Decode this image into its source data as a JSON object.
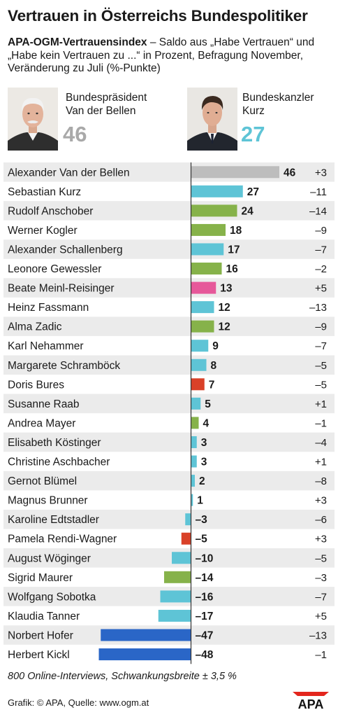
{
  "title": "Vertrauen in Österreichs Bundespolitiker",
  "subtitle": {
    "bold": "APA-OGM-Vertrauensindex",
    "rest": " – Saldo aus „Habe Vertrauen“ und „Habe kein Vertrauen zu ...“ in Prozent, Befragung November, Veränderung zu Juli (%-Punkte)"
  },
  "highlights": [
    {
      "role": "Bundespräsident\nVan der Bellen",
      "value": "46",
      "color": "#a9a9a9"
    },
    {
      "role": "Bundeskanzler\nKurz",
      "value": "27",
      "color": "#5ec4d6"
    }
  ],
  "colors": {
    "grey": "#bdbdbd",
    "turquoise": "#5ec4d6",
    "green": "#86b24a",
    "pink": "#e6589a",
    "red": "#d94128",
    "blue": "#2a66c7",
    "row_alt": "#ebebeb",
    "axis": "#333333"
  },
  "chart_data": {
    "type": "bar",
    "orientation": "horizontal",
    "categories": [
      "Alexander Van der Bellen",
      "Sebastian Kurz",
      "Rudolf Anschober",
      "Werner Kogler",
      "Alexander Schallenberg",
      "Leonore Gewessler",
      "Beate Meinl-Reisinger",
      "Heinz Fassmann",
      "Alma Zadic",
      "Karl Nehammer",
      "Margarete Schramböck",
      "Doris Bures",
      "Susanne Raab",
      "Andrea Mayer",
      "Elisabeth Köstinger",
      "Christine Aschbacher",
      "Gernot Blümel",
      "Magnus Brunner",
      "Karoline Edtstadler",
      "Pamela Rendi-Wagner",
      "August Wöginger",
      "Sigrid Maurer",
      "Wolfgang Sobotka",
      "Klaudia Tanner",
      "Norbert Hofer",
      "Herbert Kickl"
    ],
    "values": [
      46,
      27,
      24,
      18,
      17,
      16,
      13,
      12,
      12,
      9,
      8,
      7,
      5,
      4,
      3,
      3,
      2,
      1,
      -3,
      -5,
      -10,
      -14,
      -16,
      -17,
      -47,
      -48
    ],
    "value_labels": [
      "46",
      "27",
      "24",
      "18",
      "17",
      "16",
      "13",
      "12",
      "12",
      "9",
      "8",
      "7",
      "5",
      "4",
      "3",
      "3",
      "2",
      "1",
      "–3",
      "–5",
      "–10",
      "–14",
      "–16",
      "–17",
      "–47",
      "–48"
    ],
    "changes": [
      "+3",
      "–11",
      "–14",
      "–9",
      "–7",
      "–2",
      "+5",
      "–13",
      "–9",
      "–7",
      "–5",
      "–5",
      "+1",
      "–1",
      "–4",
      "+1",
      "–8",
      "+3",
      "–6",
      "+3",
      "–5",
      "–3",
      "–7",
      "+5",
      "–13",
      "–1"
    ],
    "bar_colors": [
      "grey",
      "turquoise",
      "green",
      "green",
      "turquoise",
      "green",
      "pink",
      "turquoise",
      "green",
      "turquoise",
      "turquoise",
      "red",
      "turquoise",
      "green",
      "turquoise",
      "turquoise",
      "turquoise",
      "turquoise",
      "turquoise",
      "red",
      "turquoise",
      "green",
      "turquoise",
      "turquoise",
      "blue",
      "blue"
    ]
  },
  "footnote": "800 Online-Interviews, Schwankungsbreite ± 3,5 %",
  "credit": "Grafik: © APA, Quelle: www.ogm.at",
  "logo_text": "APA"
}
